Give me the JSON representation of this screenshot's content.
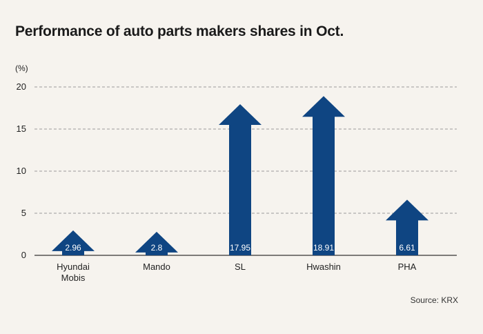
{
  "chart_data": {
    "type": "bar",
    "title": "Performance of auto parts makers shares in Oct.",
    "unit_label": "(%)",
    "categories": [
      "Hyundai\nMobis",
      "Mando",
      "SL",
      "Hwashin",
      "PHA"
    ],
    "values": [
      2.96,
      2.8,
      17.95,
      18.91,
      6.61
    ],
    "value_labels": [
      "2.96",
      "2.8",
      "17.95",
      "18.91",
      "6.61"
    ],
    "y_ticks": [
      0,
      5,
      10,
      15,
      20
    ],
    "ylim": [
      0,
      20
    ],
    "grid": true,
    "bar_color": "#0f4582",
    "grid_color": "#9a9a9a",
    "source": "Source: KRX"
  }
}
